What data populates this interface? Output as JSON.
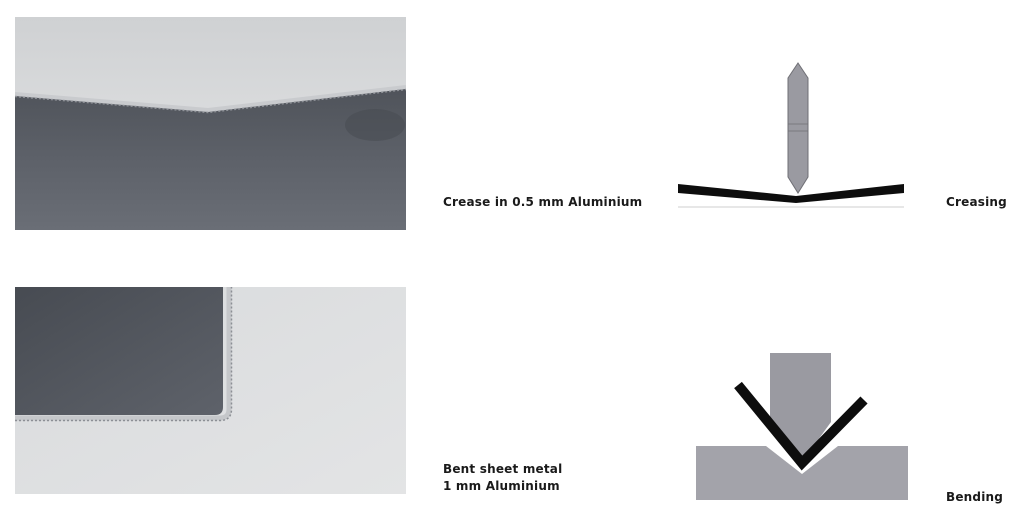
{
  "rows": [
    {
      "photo_caption": "Crease in 0.5 mm Aluminium",
      "diagram_caption": "Creasing"
    },
    {
      "photo_caption_lines": [
        "Bent sheet metal",
        "1 mm Aluminium"
      ],
      "diagram_caption": "Bending"
    }
  ],
  "colors": {
    "sheet_black": "#0d0d0d",
    "tool_gray": "#9a9aa1",
    "die_gray": "#a3a3aa",
    "photo_dark": "#5b5f67",
    "photo_light": "#d6d8da"
  }
}
